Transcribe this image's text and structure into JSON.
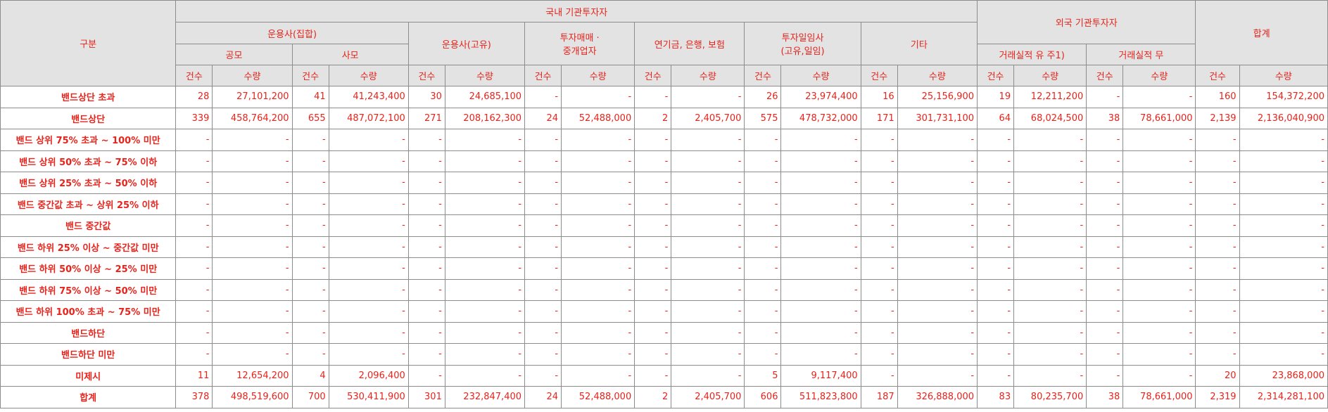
{
  "header": {
    "category": "구분",
    "domestic": "국내 기관투자자",
    "foreign": "외국 기관투자자",
    "total": "합계",
    "groups": {
      "asset_collective": "운용사(집합)",
      "asset_own": "운용사(고유)",
      "broker_line1": "투자매매 ·",
      "broker_line2": "중개업자",
      "pension": "연기금, 은행, 보험",
      "discretionary_line1": "투자일임사",
      "discretionary_line2": "(고유,일임)",
      "others": "기타",
      "foreign_yes": "거래실적 유 주1)",
      "foreign_no": "거래실적 무",
      "public": "공모",
      "private": "사모"
    },
    "count": "건수",
    "amount": "수량"
  },
  "rows": [
    {
      "label": "밴드상단 초과",
      "cells": [
        "28",
        "27,101,200",
        "41",
        "41,243,400",
        "30",
        "24,685,100",
        "-",
        "-",
        "-",
        "-",
        "26",
        "23,974,400",
        "16",
        "25,156,900",
        "19",
        "12,211,200",
        "-",
        "-",
        "160",
        "154,372,200"
      ]
    },
    {
      "label": "밴드상단",
      "cells": [
        "339",
        "458,764,200",
        "655",
        "487,072,100",
        "271",
        "208,162,300",
        "24",
        "52,488,000",
        "2",
        "2,405,700",
        "575",
        "478,732,000",
        "171",
        "301,731,100",
        "64",
        "68,024,500",
        "38",
        "78,661,000",
        "2,139",
        "2,136,040,900"
      ]
    },
    {
      "label": "밴드 상위 75% 초과 ~ 100% 미만",
      "cells": [
        "-",
        "-",
        "-",
        "-",
        "-",
        "-",
        "-",
        "-",
        "-",
        "-",
        "-",
        "-",
        "-",
        "-",
        "-",
        "-",
        "-",
        "-",
        "-",
        "-"
      ]
    },
    {
      "label": "밴드 상위 50% 초과 ~ 75% 이하",
      "cells": [
        "-",
        "-",
        "-",
        "-",
        "-",
        "-",
        "-",
        "-",
        "-",
        "-",
        "-",
        "-",
        "-",
        "-",
        "-",
        "-",
        "-",
        "-",
        "-",
        "-"
      ]
    },
    {
      "label": "밴드 상위 25% 초과 ~ 50% 이하",
      "cells": [
        "-",
        "-",
        "-",
        "-",
        "-",
        "-",
        "-",
        "-",
        "-",
        "-",
        "-",
        "-",
        "-",
        "-",
        "-",
        "-",
        "-",
        "-",
        "-",
        "-"
      ]
    },
    {
      "label": "밴드 중간값 초과 ~ 상위 25% 이하",
      "cells": [
        "-",
        "-",
        "-",
        "-",
        "-",
        "-",
        "-",
        "-",
        "-",
        "-",
        "-",
        "-",
        "-",
        "-",
        "-",
        "-",
        "-",
        "-",
        "-",
        "-"
      ]
    },
    {
      "label": "밴드 중간값",
      "cells": [
        "-",
        "-",
        "-",
        "-",
        "-",
        "-",
        "-",
        "-",
        "-",
        "-",
        "-",
        "-",
        "-",
        "-",
        "-",
        "-",
        "-",
        "-",
        "-",
        "-"
      ]
    },
    {
      "label": "밴드 하위 25% 이상 ~ 중간값 미만",
      "cells": [
        "-",
        "-",
        "-",
        "-",
        "-",
        "-",
        "-",
        "-",
        "-",
        "-",
        "-",
        "-",
        "-",
        "-",
        "-",
        "-",
        "-",
        "-",
        "-",
        "-"
      ]
    },
    {
      "label": "밴드 하위 50% 이상 ~ 25% 미만",
      "cells": [
        "-",
        "-",
        "-",
        "-",
        "-",
        "-",
        "-",
        "-",
        "-",
        "-",
        "-",
        "-",
        "-",
        "-",
        "-",
        "-",
        "-",
        "-",
        "-",
        "-"
      ]
    },
    {
      "label": "밴드 하위 75% 이상 ~ 50% 미만",
      "cells": [
        "-",
        "-",
        "-",
        "-",
        "-",
        "-",
        "-",
        "-",
        "-",
        "-",
        "-",
        "-",
        "-",
        "-",
        "-",
        "-",
        "-",
        "-",
        "-",
        "-"
      ]
    },
    {
      "label": "밴드 하위 100% 초과 ~ 75% 미만",
      "cells": [
        "-",
        "-",
        "-",
        "-",
        "-",
        "-",
        "-",
        "-",
        "-",
        "-",
        "-",
        "-",
        "-",
        "-",
        "-",
        "-",
        "-",
        "-",
        "-",
        "-"
      ]
    },
    {
      "label": "밴드하단",
      "cells": [
        "-",
        "-",
        "-",
        "-",
        "-",
        "-",
        "-",
        "-",
        "-",
        "-",
        "-",
        "-",
        "-",
        "-",
        "-",
        "-",
        "-",
        "-",
        "-",
        "-"
      ]
    },
    {
      "label": "밴드하단 미만",
      "cells": [
        "-",
        "-",
        "-",
        "-",
        "-",
        "-",
        "-",
        "-",
        "-",
        "-",
        "-",
        "-",
        "-",
        "-",
        "-",
        "-",
        "-",
        "-",
        "-",
        "-"
      ]
    },
    {
      "label": "미제시",
      "cells": [
        "11",
        "12,654,200",
        "4",
        "2,096,400",
        "-",
        "-",
        "-",
        "-",
        "-",
        "-",
        "5",
        "9,117,400",
        "-",
        "-",
        "-",
        "-",
        "-",
        "-",
        "20",
        "23,868,000"
      ]
    },
    {
      "label": "합계",
      "cells": [
        "378",
        "498,519,600",
        "700",
        "530,411,900",
        "301",
        "232,847,400",
        "24",
        "52,488,000",
        "2",
        "2,405,700",
        "606",
        "511,823,800",
        "187",
        "326,888,000",
        "83",
        "80,235,700",
        "38",
        "78,661,000",
        "2,319",
        "2,314,281,100"
      ]
    }
  ],
  "colors": {
    "text": "#e8231b",
    "header_bg": "#e3e3e3",
    "border": "#8c8c8c"
  }
}
